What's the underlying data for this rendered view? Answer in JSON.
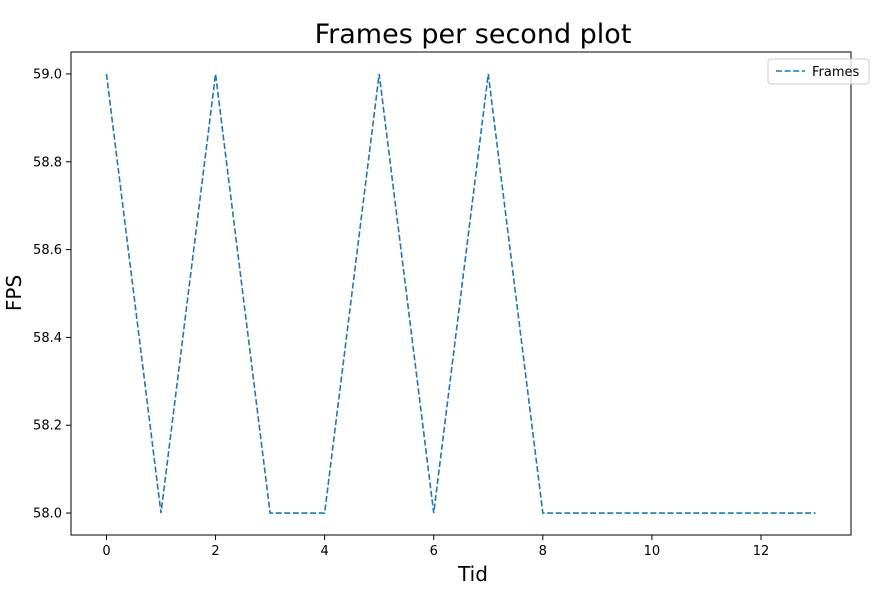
{
  "chart_data": {
    "type": "line",
    "title": "Frames per second plot",
    "xlabel": "Tid",
    "ylabel": "FPS",
    "xlim": [
      -0.65,
      13.65
    ],
    "ylim": [
      57.95,
      59.05
    ],
    "xticks": [
      0,
      2,
      4,
      6,
      8,
      10,
      12
    ],
    "yticks": [
      58.0,
      58.2,
      58.4,
      58.6,
      58.8,
      59.0
    ],
    "xtick_labels": [
      "0",
      "2",
      "4",
      "6",
      "8",
      "10",
      "12"
    ],
    "ytick_labels": [
      "58.0",
      "58.2",
      "58.4",
      "58.6",
      "58.8",
      "59.0"
    ],
    "grid": false,
    "legend_position": "top-right",
    "series": [
      {
        "name": "Frames",
        "color": "#1f77b4",
        "line_style": "dashed",
        "x": [
          0,
          1,
          2,
          3,
          4,
          5,
          6,
          7,
          8,
          9,
          10,
          11,
          12,
          13
        ],
        "values": [
          59,
          58,
          59,
          58,
          58,
          59,
          58,
          59,
          58,
          58,
          58,
          58,
          58,
          58
        ]
      }
    ]
  }
}
